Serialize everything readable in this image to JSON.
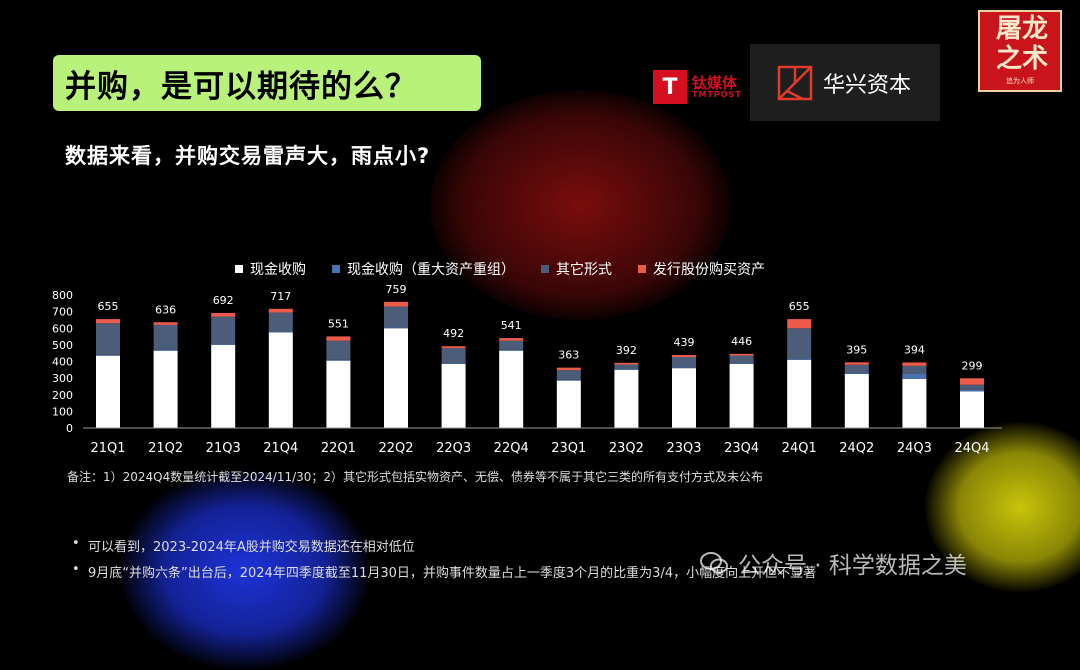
{
  "title": "并购，是可以期待的么？",
  "subtitle": "数据来看，并购交易雷声大，雨点小?",
  "logos": {
    "tmt_cn": "钛媒体",
    "tmt_en": "TMTPOST",
    "huaxing": "华兴资本",
    "seal_line1": "屠龙",
    "seal_line2": "之术",
    "seal_small": "追为人师"
  },
  "note": "备注：1）2024Q4数量统计截至2024/11/30；2）其它形式包括实物资产、无偿、债券等不属于其它三类的所有支付方式及未公布",
  "bullets": [
    "可以看到，2023-2024年A股并购交易数据还在相对低位",
    "9月底“并购六条”出台后，2024年四季度截至11月30日，并购事件数量占上一季度3个月的比重为3/4，小幅度向上开但不显著"
  ],
  "watermark": "公众号 · 科学数据之美",
  "chart_data": {
    "type": "bar",
    "stacked": true,
    "categories": [
      "21Q1",
      "21Q2",
      "21Q3",
      "21Q4",
      "22Q1",
      "22Q2",
      "22Q3",
      "22Q4",
      "23Q1",
      "23Q2",
      "23Q3",
      "23Q4",
      "24Q1",
      "24Q2",
      "24Q3",
      "24Q4"
    ],
    "totals": [
      655,
      636,
      692,
      717,
      551,
      759,
      492,
      541,
      363,
      392,
      439,
      446,
      655,
      395,
      394,
      299
    ],
    "series": [
      {
        "name": "现金收购",
        "color": "#ffffff",
        "values": [
          435,
          465,
          500,
          575,
          405,
          600,
          385,
          465,
          285,
          350,
          360,
          385,
          410,
          325,
          295,
          220
        ]
      },
      {
        "name": "现金收购（重大资产重组）",
        "color": "#4a74b0",
        "values": [
          5,
          5,
          5,
          5,
          5,
          5,
          5,
          5,
          5,
          5,
          5,
          5,
          5,
          5,
          30,
          10
        ]
      },
      {
        "name": "其它形式",
        "color": "#4c5d7a",
        "values": [
          190,
          150,
          165,
          115,
          115,
          125,
          90,
          55,
          58,
          27,
          62,
          46,
          185,
          50,
          49,
          30
        ]
      },
      {
        "name": "发行股份购买资产",
        "color": "#ec5b4a",
        "values": [
          25,
          16,
          22,
          22,
          26,
          29,
          12,
          16,
          15,
          10,
          12,
          10,
          55,
          15,
          20,
          39
        ]
      }
    ],
    "ylim": [
      0,
      800
    ],
    "yticks": [
      0,
      100,
      200,
      300,
      400,
      500,
      600,
      700,
      800
    ],
    "legend_position": "top",
    "grid": false
  }
}
